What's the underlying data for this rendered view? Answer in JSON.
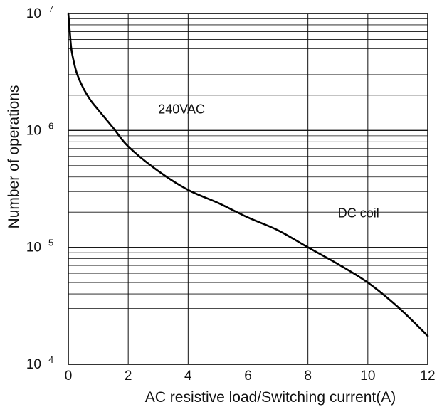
{
  "chart_data": {
    "type": "line",
    "title": "",
    "xlabel": "AC resistive load/Switching current(A)",
    "ylabel": "Number of operations",
    "xlim": [
      0,
      12
    ],
    "ylim": [
      10000,
      10000000
    ],
    "yscale": "log",
    "grid": true,
    "x_ticks": [
      "0",
      "2",
      "4",
      "6",
      "8",
      "10",
      "12"
    ],
    "y_ticks": [
      {
        "base": "10",
        "exp": "4",
        "value": 10000
      },
      {
        "base": "10",
        "exp": "5",
        "value": 100000
      },
      {
        "base": "10",
        "exp": "6",
        "value": 1000000
      },
      {
        "base": "10",
        "exp": "7",
        "value": 10000000
      }
    ],
    "series": [
      {
        "name": "",
        "color": "#000000",
        "x": [
          0,
          0.05,
          0.1,
          0.2,
          0.3,
          0.5,
          0.75,
          1.0,
          1.5,
          2.0,
          3.0,
          4.0,
          5.0,
          6.0,
          7.0,
          8.0,
          9.0,
          10.0,
          11.0,
          12.0
        ],
        "y": [
          10000000,
          7000000,
          5000000,
          3700000,
          3000000,
          2300000,
          1800000,
          1500000,
          1050000,
          730000,
          450000,
          310000,
          240000,
          180000,
          140000,
          100000,
          72000,
          50000,
          31000,
          17500
        ]
      }
    ],
    "annotations": [
      {
        "text": "240VAC",
        "x": 3.0,
        "y": 1400000
      },
      {
        "text": "DC coil",
        "x": 9.0,
        "y": 180000
      }
    ]
  }
}
